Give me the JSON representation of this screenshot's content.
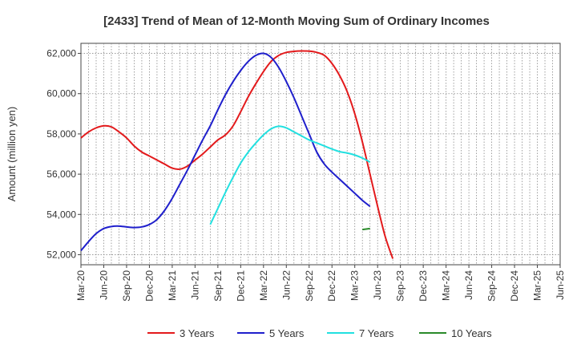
{
  "chart_data": {
    "type": "line",
    "title": "[2433]  Trend of Mean of 12-Month Moving Sum of Ordinary Incomes",
    "xlabel": "",
    "ylabel": "Amount (million yen)",
    "ylim": [
      51500,
      62500
    ],
    "yticks": [
      52000,
      54000,
      56000,
      58000,
      60000,
      62000
    ],
    "ytick_labels": [
      "52,000",
      "54,000",
      "56,000",
      "58,000",
      "60,000",
      "62,000"
    ],
    "x_tick_labels": [
      "Mar-20",
      "Jun-20",
      "Sep-20",
      "Dec-20",
      "Mar-21",
      "Jun-21",
      "Sep-21",
      "Dec-21",
      "Mar-22",
      "Jun-22",
      "Sep-22",
      "Dec-22",
      "Mar-23",
      "Jun-23",
      "Sep-23",
      "Dec-23",
      "Mar-24",
      "Jun-24",
      "Sep-24",
      "Dec-24",
      "Mar-25",
      "Jun-25"
    ],
    "grid": true,
    "legend_position": "bottom",
    "series": [
      {
        "name": "3 Years",
        "color": "#e31a1c",
        "x_start": 0,
        "values": [
          57800,
          58100,
          58300,
          58400,
          58350,
          58100,
          57800,
          57400,
          57100,
          56900,
          56700,
          56500,
          56300,
          56250,
          56400,
          56700,
          57000,
          57350,
          57700,
          57950,
          58400,
          59100,
          59850,
          60500,
          61100,
          61600,
          61900,
          62050,
          62100,
          62120,
          62110,
          62050,
          61900,
          61500,
          60900,
          60100,
          59000,
          57600,
          56000,
          54400,
          52900,
          51800
        ]
      },
      {
        "name": "5 Years",
        "color": "#1f1fcc",
        "x_start": 0,
        "values": [
          52200,
          52650,
          53050,
          53300,
          53400,
          53420,
          53380,
          53350,
          53380,
          53500,
          53750,
          54200,
          54800,
          55500,
          56200,
          56950,
          57700,
          58400,
          59200,
          59950,
          60600,
          61150,
          61600,
          61900,
          62000,
          61800,
          61300,
          60600,
          59800,
          58900,
          58000,
          57100,
          56500,
          56100,
          55750,
          55400,
          55050,
          54700,
          54400
        ]
      },
      {
        "name": "7 Years",
        "color": "#22e0e0",
        "x_start": 17,
        "values": [
          53500,
          54300,
          55100,
          55850,
          56550,
          57100,
          57550,
          57950,
          58250,
          58380,
          58300,
          58100,
          57900,
          57700,
          57550,
          57400,
          57250,
          57120,
          57050,
          56950,
          56800,
          56600
        ]
      },
      {
        "name": "10 Years",
        "color": "#2a8a2a",
        "x_start": 37,
        "values": [
          53250,
          53300
        ]
      }
    ]
  }
}
